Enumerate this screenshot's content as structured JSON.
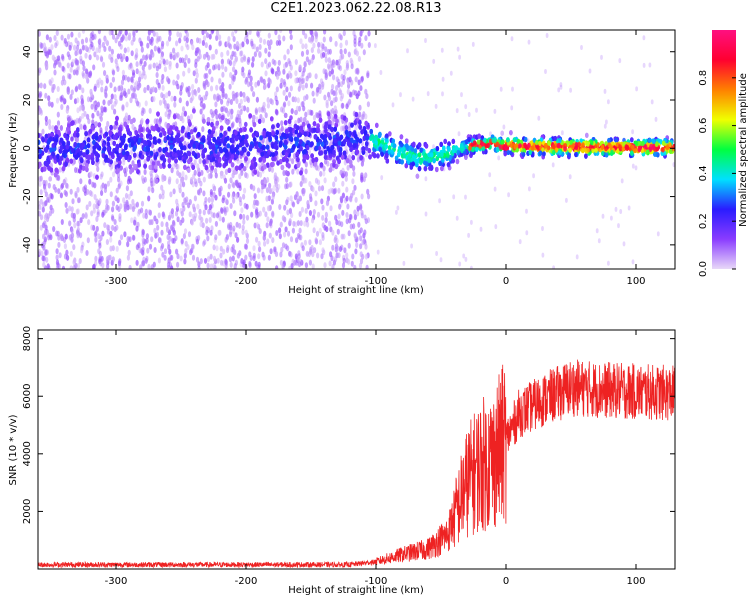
{
  "title": "C2E1.2023.062.22.08.R13",
  "chart_data": [
    {
      "type": "heatmap",
      "xlabel": "Height of straight line (km)",
      "ylabel": "Frequency (Hz)",
      "xlim": [
        -360,
        130
      ],
      "ylim": [
        -50,
        49
      ],
      "xticks": [
        -300,
        -200,
        -100,
        0,
        100
      ],
      "yticks": [
        -40,
        -20,
        0,
        20,
        40
      ],
      "colorbar": {
        "label": "Normalized spectral amplitude",
        "ticks": [
          0.0,
          0.2,
          0.4,
          0.6,
          0.8
        ],
        "range": [
          0,
          1
        ],
        "colormap": "rainbow",
        "colors": [
          "#e8d8f8",
          "#8a3cff",
          "#2a1cff",
          "#00e0ff",
          "#00ff40",
          "#f0ff00",
          "#ff8000",
          "#ff0030",
          "#ff1080"
        ]
      },
      "ridge": [
        {
          "x": -360,
          "y": 0
        },
        {
          "x": -250,
          "y": 1
        },
        {
          "x": -150,
          "y": 2
        },
        {
          "x": -120,
          "y": 4
        },
        {
          "x": -100,
          "y": 3
        },
        {
          "x": -80,
          "y": -2
        },
        {
          "x": -65,
          "y": -4
        },
        {
          "x": -50,
          "y": -3
        },
        {
          "x": -30,
          "y": 1
        },
        {
          "x": -10,
          "y": 2
        },
        {
          "x": 0,
          "y": 1
        },
        {
          "x": 50,
          "y": 0.5
        },
        {
          "x": 100,
          "y": 0.3
        },
        {
          "x": 130,
          "y": 0.3
        }
      ],
      "grid": false
    },
    {
      "type": "line",
      "xlabel": "Height of straight line (km)",
      "ylabel": "SNR (10 * v/v)",
      "xlim": [
        -360,
        130
      ],
      "ylim": [
        0,
        8300
      ],
      "xticks": [
        -300,
        -200,
        -100,
        0,
        100
      ],
      "yticks": [
        2000,
        4000,
        6000,
        8000
      ],
      "series": [
        {
          "color": "#ee2222",
          "envelope": [
            {
              "x": -360,
              "y": 150
            },
            {
              "x": -120,
              "y": 150
            },
            {
              "x": -100,
              "y": 250
            },
            {
              "x": -80,
              "y": 500
            },
            {
              "x": -60,
              "y": 700
            },
            {
              "x": -45,
              "y": 1200
            },
            {
              "x": -30,
              "y": 3000
            },
            {
              "x": -20,
              "y": 3600
            },
            {
              "x": -10,
              "y": 3800
            },
            {
              "x": 0,
              "y": 4500
            },
            {
              "x": 10,
              "y": 5400
            },
            {
              "x": 30,
              "y": 5900
            },
            {
              "x": 50,
              "y": 6300
            },
            {
              "x": 80,
              "y": 6200
            },
            {
              "x": 130,
              "y": 6100
            }
          ]
        }
      ],
      "grid": false
    }
  ]
}
